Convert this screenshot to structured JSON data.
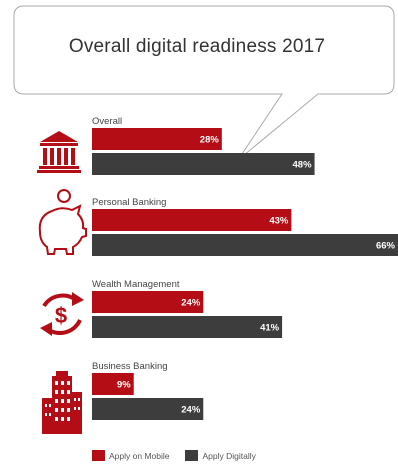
{
  "title": "Overall digital readiness 2017",
  "colors": {
    "mobile": "#b50d15",
    "digital": "#3d3d3d",
    "icon": "#b50d15"
  },
  "legend": [
    "Apply on Mobile",
    "Apply Digitally"
  ],
  "chart_data": {
    "type": "bar",
    "orientation": "horizontal",
    "title": "Overall digital readiness 2017",
    "categories": [
      "Overall",
      "Personal Banking",
      "Wealth Management",
      "Business Banking"
    ],
    "series": [
      {
        "name": "Apply on Mobile",
        "values": [
          28,
          43,
          24,
          9
        ]
      },
      {
        "name": "Apply Digitally",
        "values": [
          48,
          66,
          41,
          24
        ]
      }
    ],
    "value_suffix": "%",
    "xlim": [
      0,
      66
    ],
    "grid": false,
    "legend_position": "bottom-left"
  },
  "icons": [
    "bank-icon",
    "piggy-bank-icon",
    "dollar-cycle-icon",
    "office-building-icon"
  ]
}
